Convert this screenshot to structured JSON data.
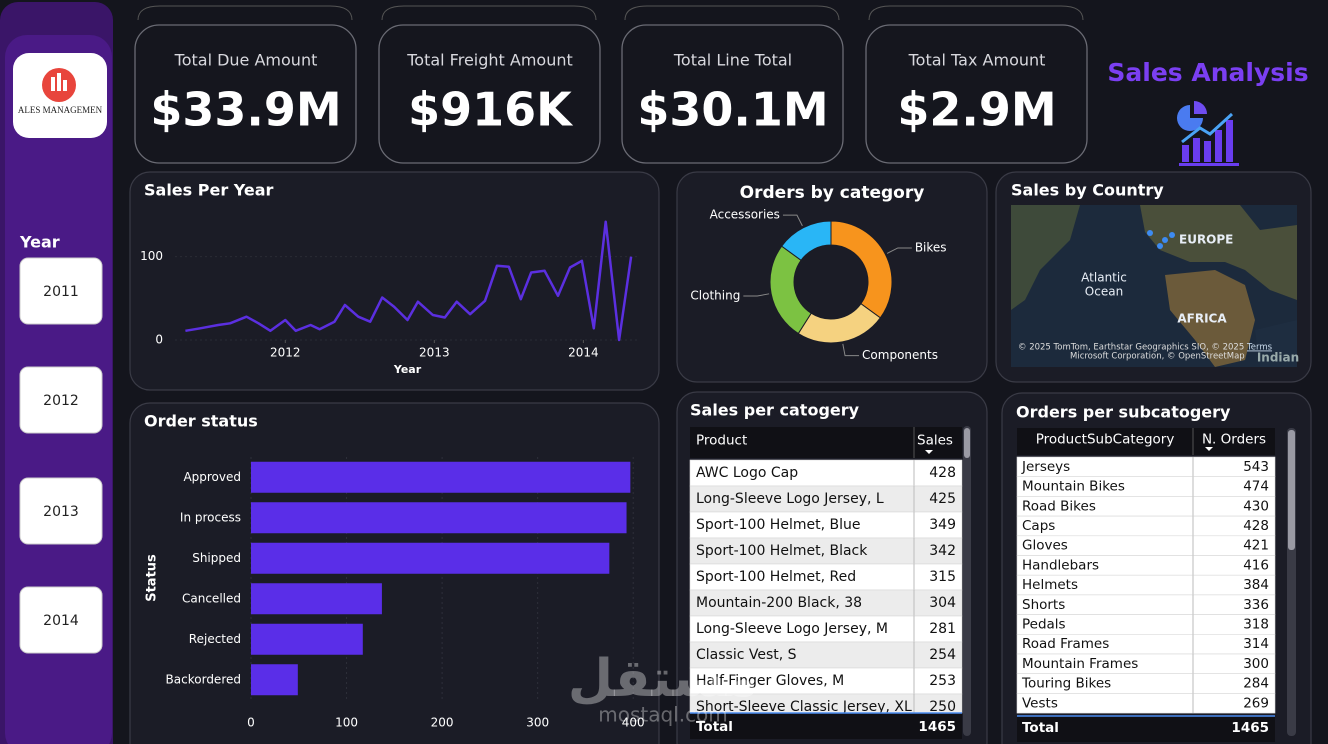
{
  "logo_text": "ALES MANAGEMEN",
  "kpis": [
    {
      "label": "Total Due Amount",
      "value": "$33.9M"
    },
    {
      "label": "Total Freight Amount",
      "value": "$916K"
    },
    {
      "label": "Total Line Total",
      "value": "$30.1M"
    },
    {
      "label": "Total Tax Amount",
      "value": "$2.9M"
    }
  ],
  "title": "Sales Analysis",
  "slicer": {
    "label": "Year",
    "items": [
      "2011",
      "2012",
      "2013",
      "2014"
    ]
  },
  "chart_data": [
    {
      "type": "line",
      "title": "Sales Per Year",
      "x_label": "Year",
      "color": "#5b2fe0",
      "x": [
        2011.33,
        2011.43,
        2011.55,
        2011.63,
        2011.74,
        2011.82,
        2011.9,
        2012.0,
        2012.07,
        2012.17,
        2012.23,
        2012.33,
        2012.4,
        2012.49,
        2012.57,
        2012.65,
        2012.73,
        2012.82,
        2012.89,
        2012.99,
        2013.07,
        2013.15,
        2013.24,
        2013.34,
        2013.42,
        2013.5,
        2013.58,
        2013.65,
        2013.74,
        2013.83,
        2013.91,
        2013.99,
        2014.07,
        2014.15,
        2014.24,
        2014.32
      ],
      "values": [
        11,
        14,
        18,
        20,
        28,
        20,
        11,
        24,
        11,
        18,
        13,
        22,
        42,
        28,
        22,
        51,
        40,
        24,
        46,
        30,
        27,
        46,
        31,
        47,
        89,
        88,
        49,
        81,
        83,
        53,
        87,
        95,
        14,
        142,
        0,
        100
      ],
      "xlim": [
        2011.26,
        2014.38
      ],
      "xticks": [
        2012,
        2013,
        2014
      ],
      "ylim": [
        0,
        150
      ],
      "yticks": [
        0,
        100
      ]
    },
    {
      "type": "pie",
      "title": "Orders by category",
      "donut": true,
      "categories": [
        "Bikes",
        "Components",
        "Clothing",
        "Accessories"
      ],
      "values": [
        35,
        24,
        26,
        15
      ],
      "colors": [
        "#f7941d",
        "#f5d280",
        "#7cc242",
        "#29b6f6"
      ]
    },
    {
      "type": "bar",
      "orientation": "horizontal",
      "title": "Order status",
      "y_label": "Status",
      "color": "#5a2ee8",
      "categories": [
        "Approved",
        "In process",
        "Shipped",
        "Cancelled",
        "Rejected",
        "Backordered"
      ],
      "values": [
        397,
        393,
        375,
        137,
        117,
        49
      ],
      "xlim": [
        0,
        405
      ],
      "xticks": [
        0,
        100,
        200,
        300,
        400
      ],
      "grid": true
    }
  ],
  "map": {
    "title": "Sales by Country",
    "labels": [
      "EUROPE",
      "Atlantic",
      "Ocean",
      "AFRICA",
      "Indian"
    ],
    "attribution": [
      "© 2025 TomTom, Earthstar Geographics SIO, © 2025",
      "Microsoft Corporation, © OpenStreetMap"
    ],
    "terms": "Terms"
  },
  "tables": [
    {
      "title": "Sales per catogery",
      "columns": [
        "Product",
        "Sales"
      ],
      "rows": [
        [
          "AWC Logo Cap",
          "428"
        ],
        [
          "Long-Sleeve Logo Jersey, L",
          "425"
        ],
        [
          "Sport-100 Helmet, Blue",
          "349"
        ],
        [
          "Sport-100 Helmet, Black",
          "342"
        ],
        [
          "Sport-100 Helmet, Red",
          "315"
        ],
        [
          "Mountain-200 Black, 38",
          "304"
        ],
        [
          "Long-Sleeve Logo Jersey, M",
          "281"
        ],
        [
          "Classic Vest, S",
          "254"
        ],
        [
          "Half-Finger Gloves, M",
          "253"
        ],
        [
          "Short-Sleeve Classic Jersey, XL",
          "250"
        ]
      ],
      "total": [
        "Total",
        "1465"
      ]
    },
    {
      "title": "Orders per subcatogery",
      "columns": [
        "ProductSubCategory",
        "N. Orders"
      ],
      "rows": [
        [
          "Jerseys",
          "543"
        ],
        [
          "Mountain Bikes",
          "474"
        ],
        [
          "Road Bikes",
          "430"
        ],
        [
          "Caps",
          "428"
        ],
        [
          "Gloves",
          "421"
        ],
        [
          "Handlebars",
          "416"
        ],
        [
          "Helmets",
          "384"
        ],
        [
          "Shorts",
          "336"
        ],
        [
          "Pedals",
          "318"
        ],
        [
          "Road Frames",
          "314"
        ],
        [
          "Mountain Frames",
          "300"
        ],
        [
          "Touring Bikes",
          "284"
        ],
        [
          "Vests",
          "269"
        ]
      ],
      "total": [
        "Total",
        "1465"
      ]
    }
  ],
  "watermark": [
    "مستقل",
    "mostaql.com"
  ]
}
